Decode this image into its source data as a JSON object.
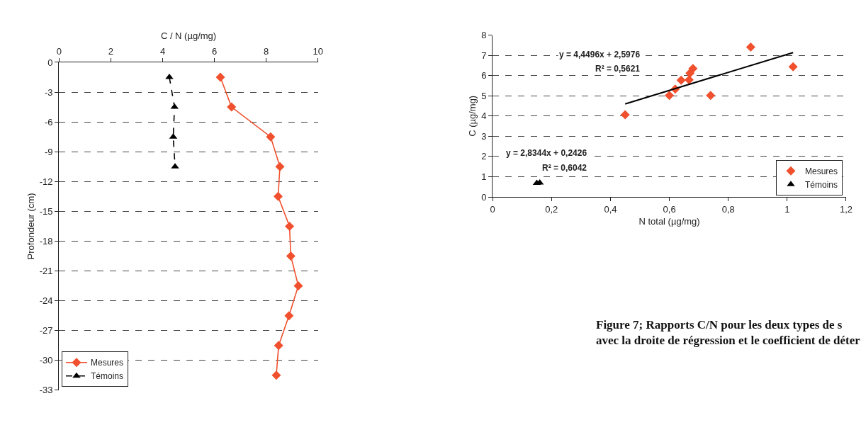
{
  "chart_data": [
    {
      "type": "line",
      "xlabel": "C / N (µg/mg)",
      "ylabel": "Profondeur (cm)",
      "xlim": [
        0,
        10
      ],
      "xticks": [
        0,
        2,
        4,
        6,
        8,
        10
      ],
      "ylim": [
        -33,
        0
      ],
      "yticks": [
        0,
        -3,
        -6,
        -9,
        -12,
        -15,
        -18,
        -21,
        -24,
        -27,
        -30,
        -33
      ],
      "grid": "y",
      "legend": "bottom left",
      "series": [
        {
          "name": "Mesures",
          "color": "#f0502d",
          "marker": "diamond",
          "line_style": "solid",
          "x": [
            6.23,
            6.66,
            8.17,
            8.53,
            8.46,
            8.9,
            8.95,
            9.24,
            8.88,
            8.48,
            8.39
          ],
          "values": [
            -1.5,
            -4.5,
            -7.5,
            -10.5,
            -13.5,
            -16.5,
            -19.5,
            -22.5,
            -25.5,
            -28.5,
            -31.5
          ]
        },
        {
          "name": "Témoins",
          "color": "#000000",
          "marker": "triangle",
          "line_style": "dashed",
          "x": [
            4.26,
            4.46,
            4.41,
            4.48
          ],
          "values": [
            -1.5,
            -4.5,
            -7.5,
            -10.5
          ]
        }
      ]
    },
    {
      "type": "scatter",
      "xlabel": "N total (µg/mg)",
      "ylabel": "C (µg/mg)",
      "xlim": [
        0,
        1.2
      ],
      "xticks": [
        0,
        {
          "value": 0.2,
          "label": "0,2"
        },
        {
          "value": 0.4,
          "label": "0,4"
        },
        {
          "value": 0.6,
          "label": "0,6"
        },
        {
          "value": 0.8,
          "label": "0,8"
        },
        1,
        {
          "value": 1.2,
          "label": "1,2"
        }
      ],
      "ylim": [
        0,
        8
      ],
      "yticks": [
        0,
        1,
        2,
        3,
        4,
        5,
        6,
        7,
        8
      ],
      "grid": "y",
      "legend": "bottom right",
      "series": [
        {
          "name": "Mesures",
          "type": "scatter",
          "color": "#f0502d",
          "marker": "diamond",
          "x": [
            0.45,
            0.6,
            0.62,
            0.64,
            0.667,
            0.67,
            0.68,
            0.74,
            0.876,
            1.02
          ],
          "values": [
            4.06,
            5.02,
            5.33,
            5.77,
            5.79,
            6.12,
            6.35,
            5.02,
            7.41,
            6.44
          ]
        },
        {
          "name": "Témoins",
          "type": "scatter",
          "color": "#000000",
          "marker": "triangle",
          "x": [
            0.15,
            0.16
          ],
          "values": [
            0.68,
            0.7
          ]
        },
        {
          "type": "line",
          "color": "#000000",
          "marker": "none",
          "line_style": "solid",
          "x": [
            0.45,
            1.02
          ],
          "values": [
            4.6,
            7.14
          ]
        }
      ],
      "annotations": [
        "y = 4,4496x + 2,5976",
        "R² = 0,5621",
        "y = 2,8344x + 0,2426",
        "R² = 0,6042",
        "Figure 7; Rapports C/N pour les deux types de s\navec la droite de régression et le coefficient de déter"
      ]
    }
  ]
}
